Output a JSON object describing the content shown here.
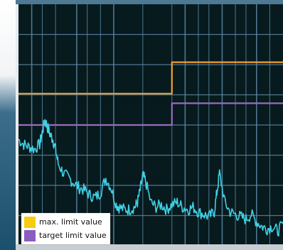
{
  "colors": {
    "grid": "#5b88a6",
    "signal": "#3fd2e6",
    "max_line": "#f0a030",
    "target_line": "#9a6bbf",
    "plot_bg": "#071a1d"
  },
  "legend": {
    "items": [
      {
        "label": "max. limit value",
        "color": "#f5cc12"
      },
      {
        "label": "target limit value",
        "color": "#8a5dbf"
      }
    ]
  },
  "chart_data": {
    "type": "line",
    "x_range": [
      0,
      100
    ],
    "y_range": [
      0,
      100
    ],
    "grid": true,
    "legend_position": "bottom-left",
    "series": [
      {
        "name": "max. limit value",
        "x": [
          0,
          58,
          58,
          100
        ],
        "y": [
          63,
          63,
          76,
          76
        ]
      },
      {
        "name": "target limit value",
        "x": [
          0,
          58,
          58,
          100
        ],
        "y": [
          50,
          50,
          59,
          59
        ]
      },
      {
        "x": [
          0,
          2,
          4,
          6,
          8,
          9,
          10,
          11,
          12,
          13,
          14,
          15,
          17,
          19,
          21,
          23,
          25,
          27,
          29,
          31,
          33,
          35,
          37,
          38,
          40,
          42,
          44,
          45,
          46,
          47,
          48,
          50,
          52,
          54,
          56,
          58,
          60,
          62,
          64,
          66,
          68,
          70,
          72,
          74,
          75,
          76,
          78,
          80,
          82,
          84,
          86,
          88,
          90,
          92,
          94,
          96,
          98,
          100
        ],
        "y": [
          44,
          42,
          41,
          40,
          42,
          47,
          52,
          49,
          46,
          44,
          40,
          34,
          30,
          28,
          26,
          24,
          23,
          21,
          20,
          22,
          28,
          24,
          17,
          16,
          15,
          15,
          16,
          18,
          23,
          29,
          27,
          18,
          16,
          17,
          15,
          17,
          18,
          16,
          15,
          16,
          14,
          13,
          12,
          14,
          22,
          30,
          18,
          14,
          13,
          12,
          11,
          13,
          10,
          8,
          7,
          8,
          6,
          9
        ]
      }
    ]
  }
}
